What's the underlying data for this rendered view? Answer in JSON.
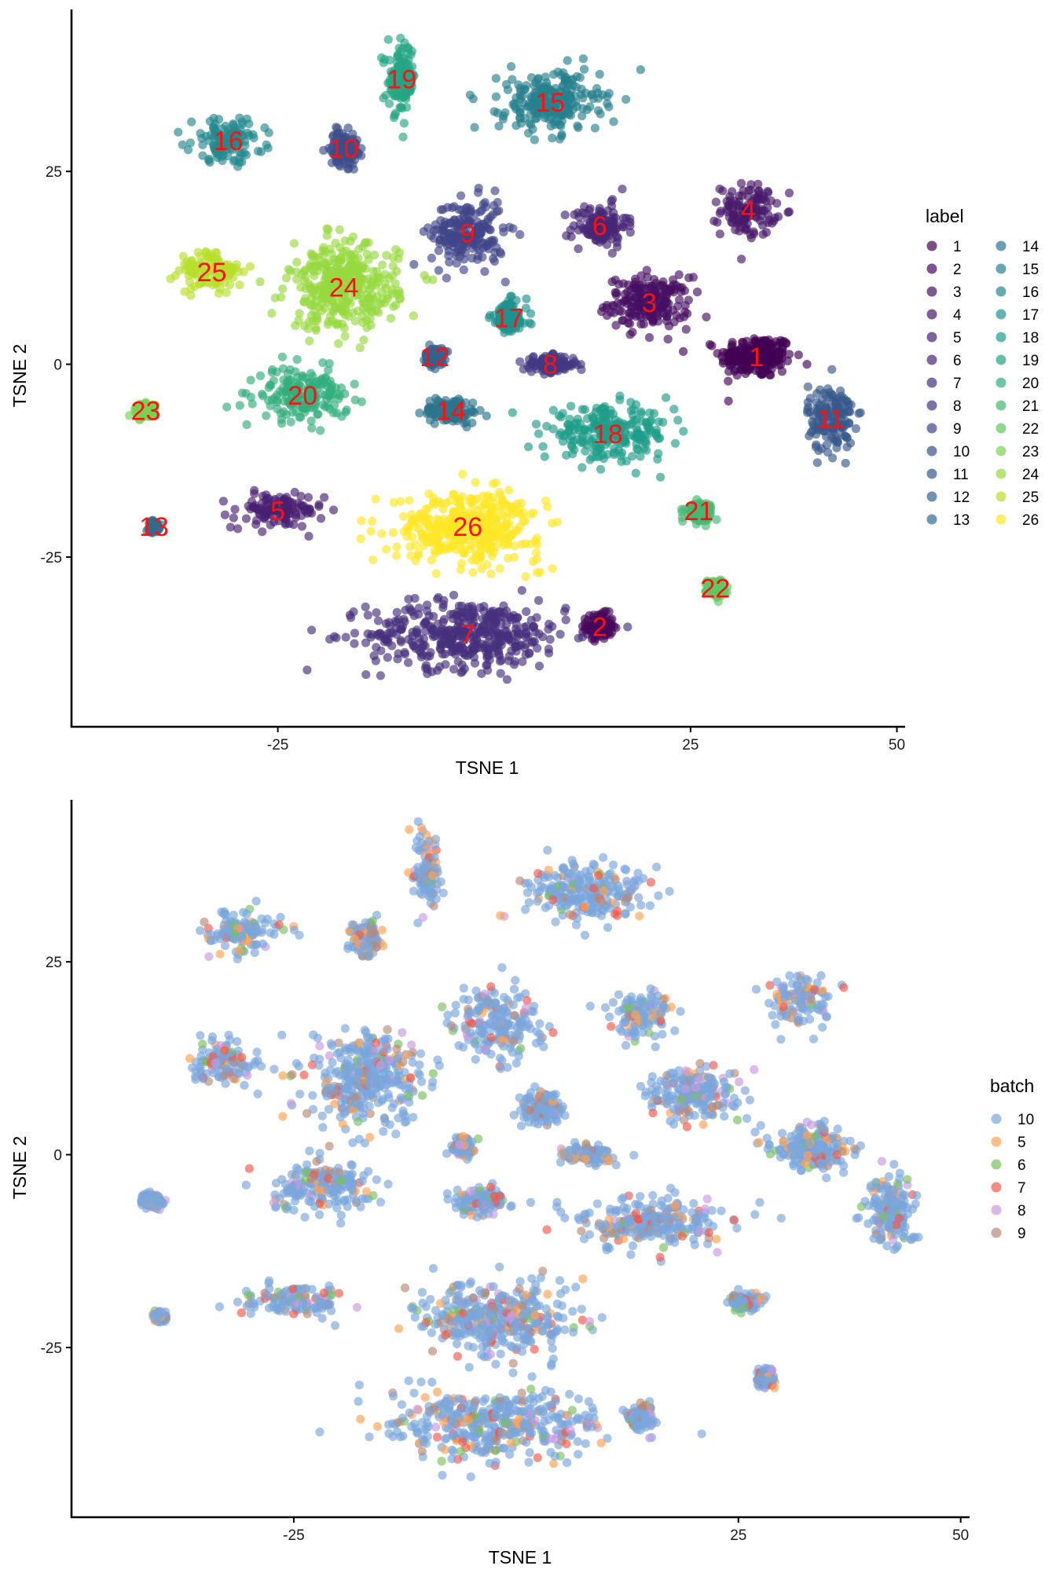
{
  "chart_data": [
    {
      "type": "scatter",
      "xlabel": "TSNE 1",
      "ylabel": "TSNE 2",
      "xlim": [
        -50,
        51
      ],
      "ylim": [
        -47,
        46
      ],
      "xticks": [
        "-25",
        "25",
        "50"
      ],
      "xtick_values": [
        -25,
        25,
        50
      ],
      "yticks": [
        "25",
        "0",
        "-25"
      ],
      "ytick_values": [
        25,
        0,
        -25
      ],
      "legend": {
        "title": "label",
        "position": "right",
        "entries": [
          "1",
          "2",
          "3",
          "4",
          "5",
          "6",
          "7",
          "8",
          "9",
          "10",
          "11",
          "12",
          "13",
          "14",
          "15",
          "16",
          "17",
          "18",
          "19",
          "20",
          "21",
          "22",
          "23",
          "24",
          "25",
          "26"
        ],
        "colors": [
          "#440154",
          "#46085c",
          "#471063",
          "#48186a",
          "#482071",
          "#472777",
          "#462f7d",
          "#443983",
          "#404588",
          "#3c4f8a",
          "#38598c",
          "#33638d",
          "#2e6d8e",
          "#2b758e",
          "#277f8e",
          "#23888e",
          "#1f928c",
          "#1f9c89",
          "#25a584",
          "#33ae7c",
          "#45b873",
          "#5ec962",
          "#7ad151",
          "#97d83f",
          "#b9de2c",
          "#fde725"
        ]
      },
      "clusters": [
        {
          "label": "1",
          "x": 33,
          "y": 1
        },
        {
          "label": "2",
          "x": 14,
          "y": -34
        },
        {
          "label": "3",
          "x": 20,
          "y": 8
        },
        {
          "label": "4",
          "x": 32,
          "y": 20
        },
        {
          "label": "5",
          "x": -25,
          "y": -19
        },
        {
          "label": "6",
          "x": 14,
          "y": 18
        },
        {
          "label": "7",
          "x": -2,
          "y": -35
        },
        {
          "label": "8",
          "x": 8,
          "y": 0
        },
        {
          "label": "9",
          "x": -2,
          "y": 17
        },
        {
          "label": "10",
          "x": -17,
          "y": 28
        },
        {
          "label": "11",
          "x": 42,
          "y": -7
        },
        {
          "label": "12",
          "x": -6,
          "y": 1
        },
        {
          "label": "13",
          "x": -40,
          "y": -21
        },
        {
          "label": "14",
          "x": -4,
          "y": -6
        },
        {
          "label": "15",
          "x": 8,
          "y": 34
        },
        {
          "label": "16",
          "x": -31,
          "y": 29
        },
        {
          "label": "17",
          "x": 3,
          "y": 6
        },
        {
          "label": "18",
          "x": 15,
          "y": -9
        },
        {
          "label": "19",
          "x": -10,
          "y": 37
        },
        {
          "label": "20",
          "x": -22,
          "y": -4
        },
        {
          "label": "21",
          "x": 26,
          "y": -19
        },
        {
          "label": "22",
          "x": 28,
          "y": -29
        },
        {
          "label": "23",
          "x": -41,
          "y": -6
        },
        {
          "label": "24",
          "x": -17,
          "y": 10
        },
        {
          "label": "25",
          "x": -33,
          "y": 12
        },
        {
          "label": "26",
          "x": -2,
          "y": -21
        }
      ]
    },
    {
      "type": "scatter",
      "xlabel": "TSNE 1",
      "ylabel": "TSNE 2",
      "xlim": [
        -50,
        51
      ],
      "ylim": [
        -47,
        46
      ],
      "xticks": [
        "-25",
        "25",
        "50"
      ],
      "xtick_values": [
        -25,
        25,
        50
      ],
      "yticks": [
        "25",
        "0",
        "-25"
      ],
      "ytick_values": [
        25,
        0,
        -25
      ],
      "legend": {
        "title": "batch",
        "position": "right",
        "entries": [
          "10",
          "5",
          "6",
          "7",
          "8",
          "9"
        ],
        "colors": [
          "#7aa6dc",
          "#ffa251",
          "#78c060",
          "#f0584a",
          "#c89ae0",
          "#b88878"
        ]
      }
    }
  ]
}
